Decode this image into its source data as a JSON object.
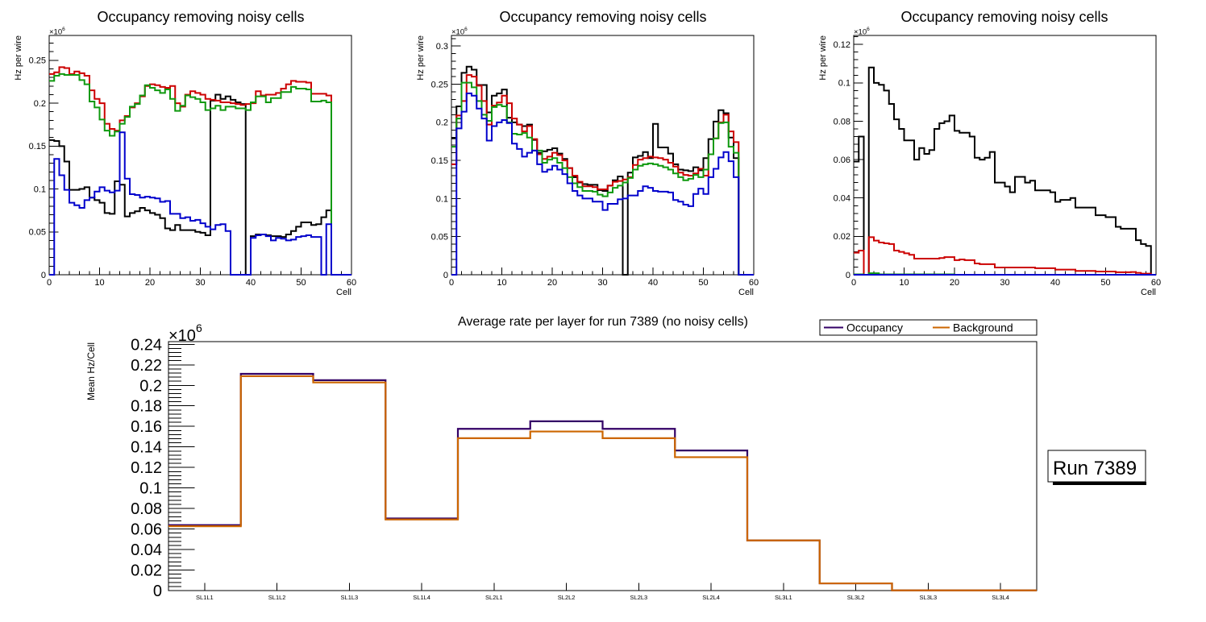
{
  "page": {
    "background": "#ffffff"
  },
  "chart_data": [
    {
      "type": "line",
      "style": "step-histogram",
      "title": "Occupancy removing noisy cells",
      "xlabel": "Cell",
      "ylabel": "Hz per wire",
      "y_scale": {
        "base": "×10",
        "exponent": "6"
      },
      "xlim": [
        0,
        60
      ],
      "ylim": [
        0,
        0.279
      ],
      "grid": false,
      "legend": null,
      "bin_count": 60,
      "xticks": [
        0,
        10,
        20,
        30,
        40,
        50,
        60
      ],
      "xtick_labels": [
        "0",
        "10",
        "20",
        "30",
        "40",
        "50",
        "60"
      ],
      "xminor_step": 2,
      "yticks": [
        0,
        0.05,
        0.1,
        0.15,
        0.2,
        0.25
      ],
      "ytick_labels": [
        "0",
        "0.05",
        "0.1",
        "0.15",
        "0.2",
        "0.25"
      ],
      "yminor_step": 0.01,
      "series": [
        {
          "name": "black",
          "color": "#000000",
          "values": [
            0.157,
            0.156,
            0.15,
            0.132,
            0.099,
            0.099,
            0.1,
            0.102,
            0.09,
            0.087,
            0.084,
            0.072,
            0.071,
            0.109,
            0.105,
            0.068,
            0.072,
            0.074,
            0.078,
            0.075,
            0.072,
            0.07,
            0.066,
            0.054,
            0.052,
            0.058,
            0.052,
            0.052,
            0.052,
            0.05,
            0.049,
            0.046,
            0.203,
            0.21,
            0.205,
            0.208,
            0.204,
            0.201,
            0.199,
            0,
            0.045,
            0.047,
            0.047,
            0.046,
            0.045,
            0.045,
            0.044,
            0.047,
            0.051,
            0.056,
            0.061,
            0.061,
            0.058,
            0.059,
            0.067,
            0.075,
            0,
            0,
            0,
            0
          ]
        },
        {
          "name": "red",
          "color": "#cc0000",
          "values": [
            0.234,
            0.236,
            0.242,
            0.241,
            0.234,
            0.237,
            0.235,
            0.232,
            0.215,
            0.205,
            0.2,
            0.176,
            0.17,
            0.168,
            0.18,
            0.185,
            0.195,
            0.2,
            0.208,
            0.22,
            0.222,
            0.221,
            0.219,
            0.218,
            0.22,
            0.2,
            0.196,
            0.21,
            0.214,
            0.212,
            0.21,
            0.205,
            0.204,
            0.203,
            0.201,
            0.201,
            0.2,
            0.199,
            0.198,
            0.199,
            0.2,
            0.214,
            0.209,
            0.21,
            0.21,
            0.212,
            0.217,
            0.222,
            0.226,
            0.225,
            0.225,
            0.224,
            0.211,
            0.211,
            0.211,
            0.209,
            0,
            0,
            0,
            0
          ]
        },
        {
          "name": "green",
          "color": "#0f990f",
          "values": [
            0.226,
            0.232,
            0.234,
            0.233,
            0.233,
            0.233,
            0.227,
            0.222,
            0.202,
            0.195,
            0.181,
            0.168,
            0.162,
            0.167,
            0.176,
            0.184,
            0.196,
            0.199,
            0.209,
            0.221,
            0.218,
            0.215,
            0.212,
            0.216,
            0.205,
            0.191,
            0.197,
            0.209,
            0.207,
            0.205,
            0.201,
            0.192,
            0.194,
            0.197,
            0.192,
            0.196,
            0.196,
            0.194,
            0.194,
            0.192,
            0.201,
            0.208,
            0.208,
            0.201,
            0.206,
            0.206,
            0.213,
            0.213,
            0.219,
            0.217,
            0.217,
            0.216,
            0.202,
            0.202,
            0.203,
            0.201,
            0,
            0,
            0,
            0
          ]
        },
        {
          "name": "blue",
          "color": "#0000cc",
          "values": [
            0,
            0.135,
            0.116,
            0.099,
            0.084,
            0.081,
            0.078,
            0.087,
            0.09,
            0.097,
            0.102,
            0.098,
            0.096,
            0.098,
            0.166,
            0.112,
            0.094,
            0.093,
            0.09,
            0.091,
            0.09,
            0.089,
            0.085,
            0.086,
            0.071,
            0.071,
            0.066,
            0.067,
            0.063,
            0.064,
            0.06,
            0.056,
            0.053,
            0.058,
            0.059,
            0.051,
            0,
            0,
            0,
            0,
            0.043,
            0.046,
            0.047,
            0.045,
            0.04,
            0.043,
            0.042,
            0.04,
            0.041,
            0.044,
            0.045,
            0.046,
            0.044,
            0.044,
            0,
            0.059,
            0,
            0,
            0,
            0
          ]
        }
      ]
    },
    {
      "type": "line",
      "style": "step-histogram",
      "title": "Occupancy removing noisy cells",
      "xlabel": "Cell",
      "ylabel": "Hz per wire",
      "y_scale": {
        "base": "×10",
        "exponent": "6"
      },
      "xlim": [
        0,
        60
      ],
      "ylim": [
        0,
        0.314
      ],
      "grid": false,
      "legend": null,
      "bin_count": 60,
      "xticks": [
        0,
        10,
        20,
        30,
        40,
        50,
        60
      ],
      "xtick_labels": [
        "0",
        "10",
        "20",
        "30",
        "40",
        "50",
        "60"
      ],
      "xminor_step": 2,
      "yticks": [
        0,
        0.05,
        0.1,
        0.15,
        0.2,
        0.25,
        0.3
      ],
      "ytick_labels": [
        "0",
        "0.05",
        "0.1",
        "0.15",
        "0.2",
        "0.25",
        "0.3"
      ],
      "yminor_step": 0.01,
      "series": [
        {
          "name": "black",
          "color": "#000000",
          "values": [
            0.179,
            0.221,
            0.265,
            0.273,
            0.269,
            0.249,
            0.249,
            0.213,
            0.235,
            0.238,
            0.243,
            0.206,
            0.2,
            0.197,
            0.195,
            0.197,
            0.177,
            0.16,
            0.162,
            0.164,
            0.166,
            0.159,
            0.152,
            0.14,
            0.128,
            0.121,
            0.119,
            0.118,
            0.118,
            0.111,
            0.11,
            0.117,
            0.124,
            0.129,
            0,
            0.134,
            0.154,
            0.156,
            0.161,
            0.153,
            0.198,
            0.167,
            0.167,
            0.159,
            0.145,
            0.138,
            0.137,
            0.136,
            0.141,
            0.137,
            0.153,
            0.178,
            0.201,
            0.216,
            0.212,
            0.18,
            0.153,
            0,
            0,
            0
          ]
        },
        {
          "name": "red",
          "color": "#cc0000",
          "values": [
            0.145,
            0.209,
            0.228,
            0.262,
            0.26,
            0.248,
            0.228,
            0.197,
            0.222,
            0.226,
            0.235,
            0.225,
            0.205,
            0.197,
            0.188,
            0.195,
            0.178,
            0.158,
            0.152,
            0.155,
            0.16,
            0.157,
            0.15,
            0.14,
            0.13,
            0.122,
            0.116,
            0.116,
            0.115,
            0.112,
            0.112,
            0.117,
            0.122,
            0.123,
            0.125,
            0.128,
            0.144,
            0.151,
            0.153,
            0.155,
            0.154,
            0.153,
            0.151,
            0.147,
            0.142,
            0.134,
            0.131,
            0.13,
            0.133,
            0.139,
            0.13,
            0.158,
            0.179,
            0.2,
            0.21,
            0.188,
            0.174,
            0,
            0,
            0
          ]
        },
        {
          "name": "green",
          "color": "#0f990f",
          "values": [
            0.168,
            0.205,
            0.252,
            0.252,
            0.246,
            0.228,
            0.21,
            0.202,
            0.22,
            0.223,
            0.221,
            0.2,
            0.185,
            0.184,
            0.186,
            0.18,
            0.163,
            0.163,
            0.147,
            0.151,
            0.153,
            0.147,
            0.14,
            0.128,
            0.12,
            0.115,
            0.11,
            0.11,
            0.109,
            0.105,
            0.103,
            0.108,
            0.114,
            0.117,
            0.121,
            0.127,
            0.138,
            0.143,
            0.145,
            0.146,
            0.145,
            0.143,
            0.141,
            0.138,
            0.133,
            0.128,
            0.124,
            0.126,
            0.131,
            0.128,
            0.138,
            0.158,
            0.179,
            0.199,
            0.2,
            0.168,
            0.16,
            0,
            0,
            0
          ]
        },
        {
          "name": "blue",
          "color": "#0000cc",
          "values": [
            0,
            0.192,
            0.214,
            0.238,
            0.235,
            0.218,
            0.205,
            0.176,
            0.195,
            0.2,
            0.203,
            0.199,
            0.172,
            0.165,
            0.155,
            0.16,
            0.163,
            0.145,
            0.135,
            0.138,
            0.143,
            0.138,
            0.132,
            0.12,
            0.11,
            0.104,
            0.1,
            0.1,
            0.096,
            0.096,
            0.085,
            0.093,
            0.093,
            0.099,
            0.1,
            0.104,
            0.104,
            0.11,
            0.116,
            0.114,
            0.11,
            0.109,
            0.109,
            0.108,
            0.098,
            0.096,
            0.092,
            0.09,
            0.106,
            0.113,
            0.106,
            0.128,
            0.139,
            0.154,
            0.161,
            0.149,
            0.128,
            0,
            0,
            0
          ]
        }
      ]
    },
    {
      "type": "line",
      "style": "step-histogram",
      "title": "Occupancy removing noisy cells",
      "xlabel": "Cell",
      "ylabel": "Hz per wire",
      "y_scale": {
        "base": "×10",
        "exponent": "6"
      },
      "xlim": [
        0,
        60
      ],
      "ylim": [
        0,
        0.1247
      ],
      "grid": false,
      "legend": null,
      "bin_count": 60,
      "xticks": [
        0,
        10,
        20,
        30,
        40,
        50,
        60
      ],
      "xtick_labels": [
        "0",
        "10",
        "20",
        "30",
        "40",
        "50",
        "60"
      ],
      "xminor_step": 2,
      "yticks": [
        0,
        0.02,
        0.04,
        0.06,
        0.08,
        0.1,
        0.12
      ],
      "ytick_labels": [
        "0",
        "0.02",
        "0.04",
        "0.06",
        "0.08",
        "0.1",
        "0.12"
      ],
      "yminor_step": 0.004,
      "series": [
        {
          "name": "black",
          "color": "#000000",
          "values": [
            0.059,
            0.072,
            0,
            0.108,
            0.1,
            0.099,
            0.096,
            0.089,
            0.081,
            0.076,
            0.07,
            0.07,
            0.06,
            0.066,
            0.063,
            0.065,
            0.076,
            0.079,
            0.08,
            0.083,
            0.075,
            0.074,
            0.074,
            0.072,
            0.061,
            0.06,
            0.061,
            0.064,
            0.048,
            0.048,
            0.046,
            0.043,
            0.051,
            0.051,
            0.048,
            0.049,
            0.044,
            0.044,
            0.044,
            0.043,
            0.038,
            0.039,
            0.039,
            0.04,
            0.035,
            0.035,
            0.035,
            0.035,
            0.031,
            0.031,
            0.03,
            0.03,
            0.025,
            0.024,
            0.024,
            0.024,
            0.018,
            0.016,
            0.015,
            0
          ]
        },
        {
          "name": "red",
          "color": "#cc0000",
          "values": [
            0.0115,
            0.0126,
            0,
            0.0196,
            0.0178,
            0.0168,
            0.0164,
            0.016,
            0.0126,
            0.0119,
            0.0112,
            0.0104,
            0.0084,
            0.0084,
            0.0084,
            0.0084,
            0.0084,
            0.0087,
            0.0092,
            0.0092,
            0.0076,
            0.008,
            0.0076,
            0.0076,
            0.0059,
            0.0055,
            0.0055,
            0.0055,
            0.0038,
            0.0038,
            0.0038,
            0.0038,
            0.0038,
            0.0038,
            0.0038,
            0.0038,
            0.0034,
            0.0034,
            0.0034,
            0.0034,
            0.0027,
            0.0027,
            0.0027,
            0.0027,
            0.002,
            0.002,
            0.002,
            0.002,
            0.0017,
            0.0017,
            0.0017,
            0.0017,
            0.0013,
            0.0013,
            0.0013,
            0.0014,
            0.001,
            0.0006,
            0.0006,
            0
          ]
        },
        {
          "name": "green",
          "color": "#0f990f",
          "values": [
            0.0002,
            0.0002,
            0,
            0.0008,
            0.0008,
            0.0002,
            0.0002,
            0.0002,
            0.0002,
            0.0002,
            0.0002,
            0.0002,
            0.0002,
            0.0002,
            0.0002,
            0.0002,
            0.0002,
            0.0002,
            0.0002,
            0.0002,
            0,
            0,
            0,
            0,
            0,
            0,
            0,
            0,
            0,
            0,
            0,
            0,
            0,
            0,
            0,
            0,
            0,
            0,
            0,
            0,
            0,
            0,
            0,
            0,
            0,
            0,
            0,
            0,
            0,
            0,
            0,
            0,
            0,
            0,
            0,
            0,
            0,
            0,
            0,
            0
          ]
        },
        {
          "name": "blue",
          "color": "#0000cc",
          "values": [
            0,
            0,
            0,
            0,
            0,
            0,
            0,
            0,
            0,
            0,
            0,
            0,
            0,
            0,
            0,
            0,
            0,
            0,
            0,
            0,
            0,
            0,
            0,
            0,
            0,
            0,
            0,
            0,
            0,
            0,
            0,
            0,
            0,
            0,
            0,
            0,
            0,
            0,
            0,
            0,
            0,
            0,
            0,
            0,
            0,
            0,
            0,
            0,
            0,
            0,
            0,
            0,
            0,
            0,
            0,
            0,
            0,
            0,
            0,
            0
          ]
        }
      ]
    },
    {
      "type": "line",
      "style": "step-histogram",
      "title": "Average rate per layer for run 7389 (no noisy cells)",
      "xlabel": "",
      "ylabel": "Mean Hz/Cell",
      "y_scale": {
        "base": "×10",
        "exponent": "6"
      },
      "categories": [
        "SL1L1",
        "SL1L2",
        "SL1L3",
        "SL1L4",
        "SL2L1",
        "SL2L2",
        "SL2L3",
        "SL2L4",
        "SL3L1",
        "SL3L2",
        "SL3L3",
        "SL3L4"
      ],
      "ylim": [
        0,
        0.2426
      ],
      "grid": false,
      "yticks": [
        0,
        0.02,
        0.04,
        0.06,
        0.08,
        0.1,
        0.12,
        0.14,
        0.16,
        0.18,
        0.2,
        0.22,
        0.24
      ],
      "ytick_labels": [
        "0",
        "0.02",
        "0.04",
        "0.06",
        "0.08",
        "0.1",
        "0.12",
        "0.14",
        "0.16",
        "0.18",
        "0.2",
        "0.22",
        "0.24"
      ],
      "yminor_step": 0.004,
      "legend": {
        "position": "top-right",
        "entries": [
          {
            "label": "Occupancy",
            "color": "#330066"
          },
          {
            "label": "Background",
            "color": "#cc6600"
          }
        ]
      },
      "series": [
        {
          "name": "Occupancy",
          "color": "#330066",
          "values": [
            0.0638,
            0.2112,
            0.205,
            0.0703,
            0.1576,
            0.165,
            0.1576,
            0.1365,
            0.0489,
            0.007,
            0.0002,
            0.0002
          ]
        },
        {
          "name": "Background",
          "color": "#cc6600",
          "values": [
            0.0627,
            0.2089,
            0.2028,
            0.0693,
            0.1485,
            0.155,
            0.1485,
            0.13,
            0.0489,
            0.007,
            0.0002,
            0.0002
          ]
        }
      ]
    }
  ],
  "run_box": {
    "label": "Run 7389"
  }
}
